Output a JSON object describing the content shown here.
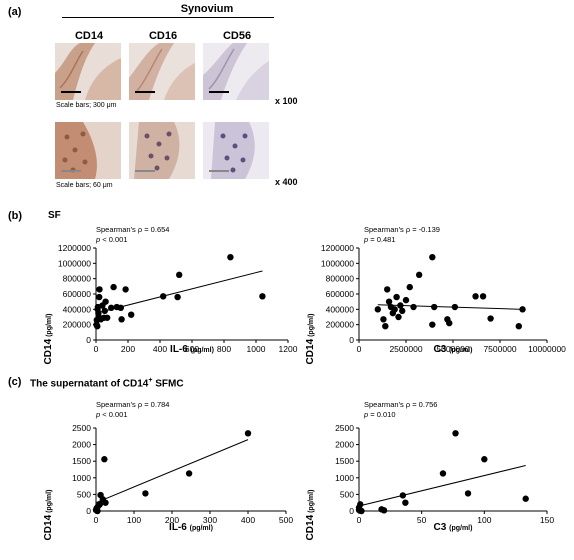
{
  "panel_a": {
    "label": "(a)",
    "title": "Synovium",
    "columns": [
      "CD14",
      "CD16",
      "CD56"
    ],
    "rows": [
      {
        "scale_note": "Scale bars; 300 μm",
        "magnification": "x 100"
      },
      {
        "scale_note": "Scale bars; 60 μm",
        "magnification": "x 400"
      }
    ]
  },
  "panel_b": {
    "label": "(b)",
    "title": "SF"
  },
  "panel_c": {
    "label": "(c)",
    "title_main": "The supernatant of CD14",
    "title_sup": "+",
    "title_tail": " SFMC"
  },
  "chart_data": [
    {
      "type": "scatter",
      "panel": "b-left",
      "stat_rho_label": "Spearman's ρ = 0.654",
      "stat_p_prefix": "p",
      "stat_p_value": " < 0.001",
      "xlabel": "IL-6",
      "xlabel_unit": "(pg/ml)",
      "ylabel": "CD14",
      "ylabel_unit": "(pg/ml)",
      "xlim": [
        0,
        1200
      ],
      "ylim": [
        0,
        1200000
      ],
      "xticks": [
        "0",
        "200",
        "400",
        "600",
        "800",
        "1000",
        "1200"
      ],
      "yticks": [
        "0",
        "200000",
        "400000",
        "600000",
        "800000",
        "1000000",
        "1200000"
      ],
      "points": [
        [
          3,
          200000
        ],
        [
          5,
          260000
        ],
        [
          8,
          180000
        ],
        [
          10,
          400000
        ],
        [
          12,
          430000
        ],
        [
          15,
          350000
        ],
        [
          18,
          300000
        ],
        [
          20,
          560000
        ],
        [
          22,
          660000
        ],
        [
          30,
          270000
        ],
        [
          40,
          450000
        ],
        [
          50,
          290000
        ],
        [
          55,
          380000
        ],
        [
          60,
          500000
        ],
        [
          70,
          290000
        ],
        [
          95,
          420000
        ],
        [
          110,
          690000
        ],
        [
          130,
          430000
        ],
        [
          155,
          420000
        ],
        [
          160,
          270000
        ],
        [
          185,
          660000
        ],
        [
          220,
          330000
        ],
        [
          420,
          570000
        ],
        [
          510,
          560000
        ],
        [
          520,
          850000
        ],
        [
          840,
          1080000
        ],
        [
          1040,
          570000
        ]
      ],
      "fit": [
        [
          0,
          350000
        ],
        [
          1040,
          900000
        ]
      ]
    },
    {
      "type": "scatter",
      "panel": "b-right",
      "stat_rho_label": "Spearman's ρ = -0.139",
      "stat_p_prefix": "p",
      "stat_p_value": " = 0.481",
      "xlabel": "C3",
      "xlabel_unit": "(pg/ml)",
      "ylabel": "CD14",
      "ylabel_unit": "(pg/ml)",
      "xlim": [
        0,
        10000000
      ],
      "ylim": [
        0,
        1200000
      ],
      "xticks": [
        "0",
        "2500000",
        "5000000",
        "7500000",
        "10000000"
      ],
      "yticks": [
        "0",
        "200000",
        "400000",
        "600000",
        "800000",
        "1000000",
        "1200000"
      ],
      "points": [
        [
          1000000,
          400000
        ],
        [
          1300000,
          270000
        ],
        [
          1400000,
          180000
        ],
        [
          1500000,
          660000
        ],
        [
          1600000,
          500000
        ],
        [
          1700000,
          430000
        ],
        [
          1800000,
          350000
        ],
        [
          1900000,
          400000
        ],
        [
          2000000,
          560000
        ],
        [
          2100000,
          300000
        ],
        [
          2200000,
          450000
        ],
        [
          2300000,
          380000
        ],
        [
          2500000,
          520000
        ],
        [
          2700000,
          690000
        ],
        [
          2900000,
          430000
        ],
        [
          3200000,
          850000
        ],
        [
          3900000,
          1080000
        ],
        [
          3900000,
          200000
        ],
        [
          4000000,
          430000
        ],
        [
          4700000,
          270000
        ],
        [
          4800000,
          220000
        ],
        [
          5100000,
          430000
        ],
        [
          6200000,
          570000
        ],
        [
          6600000,
          570000
        ],
        [
          7000000,
          280000
        ],
        [
          8500000,
          180000
        ],
        [
          8700000,
          400000
        ]
      ],
      "fit": [
        [
          1000000,
          460000
        ],
        [
          8700000,
          400000
        ]
      ]
    },
    {
      "type": "scatter",
      "panel": "c-left",
      "stat_rho_label": "Spearman's ρ = 0.784",
      "stat_p_prefix": "p",
      "stat_p_value": " < 0.001",
      "xlabel": "IL-6",
      "xlabel_unit": "(pg/ml)",
      "ylabel": "CD14",
      "ylabel_unit": "(pg/ml)",
      "xlim": [
        0,
        500
      ],
      "ylim": [
        0,
        2500
      ],
      "xticks": [
        "0",
        "100",
        "200",
        "300",
        "400",
        "500"
      ],
      "yticks": [
        "0",
        "500",
        "1000",
        "1500",
        "2000",
        "2500"
      ],
      "points": [
        [
          0,
          30
        ],
        [
          2,
          90
        ],
        [
          4,
          0
        ],
        [
          6,
          150
        ],
        [
          10,
          200
        ],
        [
          12,
          480
        ],
        [
          18,
          350
        ],
        [
          22,
          1560
        ],
        [
          25,
          250
        ],
        [
          130,
          530
        ],
        [
          245,
          1130
        ],
        [
          400,
          2340
        ]
      ],
      "fit": [
        [
          0,
          250
        ],
        [
          400,
          2150
        ]
      ]
    },
    {
      "type": "scatter",
      "panel": "c-right",
      "stat_rho_label": "Spearman's ρ = 0.756",
      "stat_p_prefix": "p",
      "stat_p_value": " = 0.010",
      "xlabel": "C3",
      "xlabel_unit": "(pg/ml)",
      "ylabel": "CD14",
      "ylabel_unit": "(pg/ml)",
      "xlim": [
        0,
        150
      ],
      "ylim": [
        0,
        2500
      ],
      "xticks": [
        "0",
        "50",
        "100",
        "150"
      ],
      "yticks": [
        "0",
        "500",
        "1000",
        "1500",
        "2000",
        "2500"
      ],
      "points": [
        [
          0,
          100
        ],
        [
          0,
          30
        ],
        [
          1,
          200
        ],
        [
          2,
          0
        ],
        [
          18,
          50
        ],
        [
          20,
          20
        ],
        [
          35,
          470
        ],
        [
          37,
          250
        ],
        [
          67,
          1130
        ],
        [
          77,
          2340
        ],
        [
          87,
          530
        ],
        [
          100,
          1560
        ],
        [
          133,
          370
        ]
      ],
      "fit": [
        [
          0,
          150
        ],
        [
          133,
          1370
        ]
      ]
    }
  ]
}
